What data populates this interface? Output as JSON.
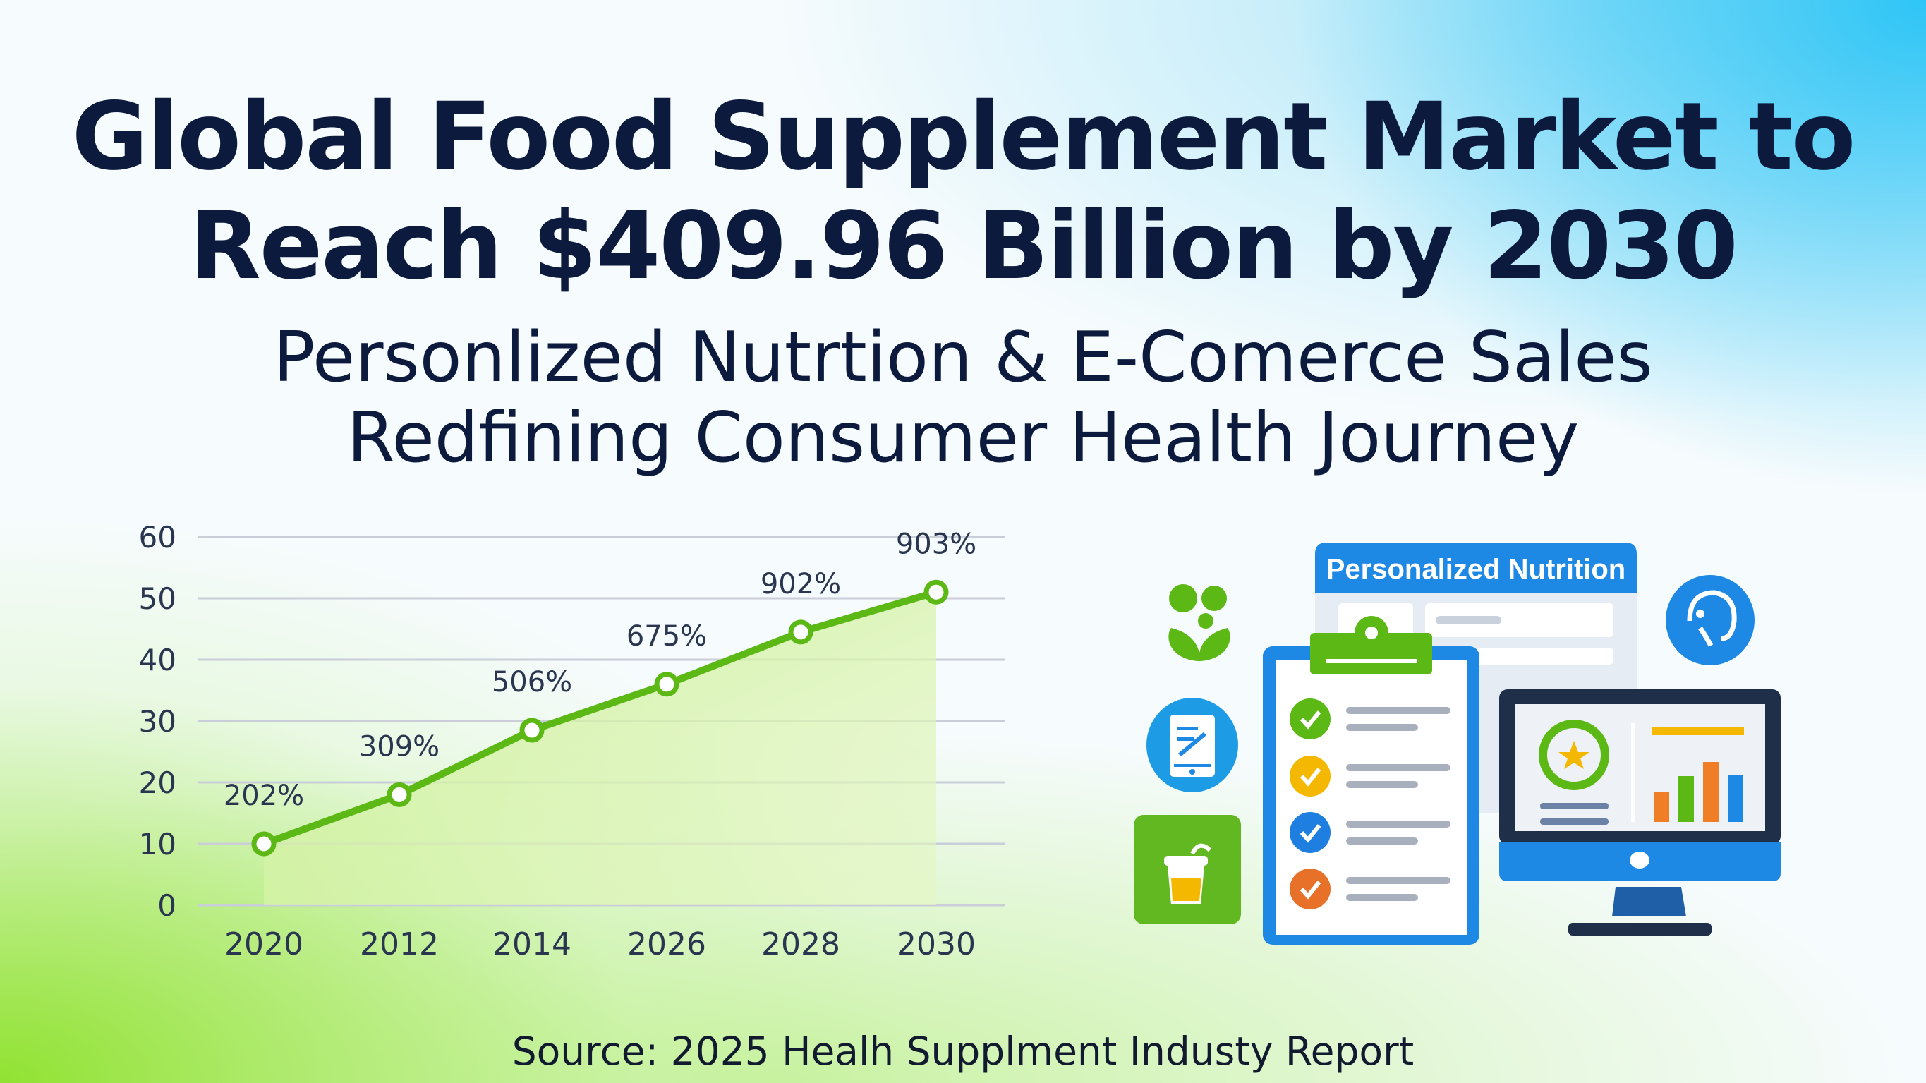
{
  "header": {
    "title_line1": "Global Food Supplement Market to",
    "title_line2": "Reach $409.96 Billion by 2030",
    "subtitle_line1": "Personlized Nutrtion & E-Comerce Sales",
    "subtitle_line2": "Redfining Consumer Health Journey"
  },
  "chart_data": {
    "type": "area",
    "categories": [
      "2020",
      "2012",
      "2014",
      "2026",
      "2028",
      "2030"
    ],
    "values": [
      10,
      18,
      28.5,
      36,
      44.5,
      51
    ],
    "data_labels": [
      "202%",
      "309%",
      "506%",
      "675%",
      "902%",
      "903%"
    ],
    "yticks": [
      "0",
      "10",
      "20",
      "30",
      "40",
      "50",
      "60"
    ],
    "ylim": [
      0,
      60
    ],
    "grid": true,
    "line_color": "#5cb814",
    "fill_color": "#c8ef8e"
  },
  "illustration": {
    "panel_title": "Personalized Nutrition",
    "icons": [
      "sprout-icon",
      "phone-checklist-icon",
      "smoothie-cup-icon",
      "clipboard-checklist-icon",
      "head-profile-icon",
      "monitor-dashboard-icon"
    ],
    "check_colors": [
      "#5cb814",
      "#f5b800",
      "#1e7fe0",
      "#e8712a"
    ],
    "brand_blue": "#1e88e5",
    "brand_green": "#5cb814"
  },
  "footer": {
    "source": "Source: 2025 Healh Supplment Industy Report"
  }
}
